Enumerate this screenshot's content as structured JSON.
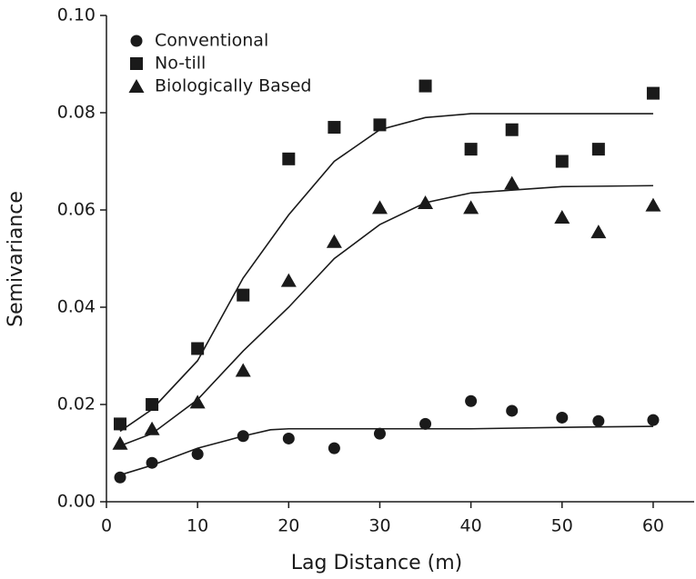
{
  "chart_data": {
    "type": "scatter",
    "xlabel": "Lag Distance (m)",
    "ylabel": "Semivariance",
    "xlim": [
      0,
      64.5
    ],
    "ylim": [
      0,
      0.1
    ],
    "xticks": [
      0,
      10,
      20,
      30,
      40,
      50,
      60
    ],
    "yticks": [
      {
        "value": 0,
        "label": "0.00"
      },
      {
        "value": 0.02,
        "label": "0.02"
      },
      {
        "value": 0.04,
        "label": "0.04"
      },
      {
        "value": 0.06,
        "label": "0.06"
      },
      {
        "value": 0.08,
        "label": "0.08"
      },
      {
        "value": 0.1,
        "label": "0.10"
      }
    ],
    "legend": "upper left",
    "series": [
      {
        "name": "Conventional",
        "marker": "circle",
        "color": "#1a1a1a",
        "x": [
          1.5,
          5,
          10,
          15,
          20,
          25,
          30,
          35,
          40,
          44.5,
          50,
          54,
          60
        ],
        "values": [
          0.005,
          0.008,
          0.0098,
          0.0135,
          0.013,
          0.011,
          0.014,
          0.016,
          0.0207,
          0.0187,
          0.0173,
          0.0166,
          0.0168
        ]
      },
      {
        "name": "No-till",
        "marker": "square",
        "color": "#1a1a1a",
        "x": [
          1.5,
          5,
          10,
          15,
          20,
          25,
          30,
          35,
          40,
          44.5,
          50,
          54,
          60
        ],
        "values": [
          0.016,
          0.02,
          0.0315,
          0.0425,
          0.0705,
          0.077,
          0.0775,
          0.0855,
          0.0725,
          0.0765,
          0.07,
          0.0725,
          0.084
        ]
      },
      {
        "name": "Biologically Based",
        "marker": "triangle",
        "color": "#1a1a1a",
        "x": [
          1.5,
          5,
          10,
          15,
          20,
          25,
          30,
          35,
          40,
          44.5,
          50,
          54,
          60
        ],
        "values": [
          0.012,
          0.015,
          0.0205,
          0.027,
          0.0455,
          0.0535,
          0.0605,
          0.0615,
          0.0605,
          0.0655,
          0.0585,
          0.0555,
          0.061
        ]
      }
    ],
    "fits": [
      {
        "color": "#1a1a1a",
        "x": [
          1.5,
          5,
          10,
          15,
          18,
          20,
          30,
          40,
          50,
          60
        ],
        "values": [
          0.0055,
          0.0075,
          0.011,
          0.0135,
          0.0148,
          0.015,
          0.015,
          0.015,
          0.0153,
          0.0155
        ]
      },
      {
        "color": "#1a1a1a",
        "x": [
          1.5,
          5,
          10,
          15,
          20,
          25,
          30,
          35,
          40,
          50,
          60
        ],
        "values": [
          0.0145,
          0.019,
          0.029,
          0.046,
          0.059,
          0.07,
          0.0765,
          0.079,
          0.0798,
          0.0798,
          0.0798
        ]
      },
      {
        "color": "#1a1a1a",
        "x": [
          1.5,
          5,
          10,
          15,
          20,
          25,
          30,
          35,
          40,
          50,
          60
        ],
        "values": [
          0.0115,
          0.014,
          0.021,
          0.031,
          0.04,
          0.05,
          0.057,
          0.0615,
          0.0635,
          0.0648,
          0.065
        ]
      }
    ]
  }
}
